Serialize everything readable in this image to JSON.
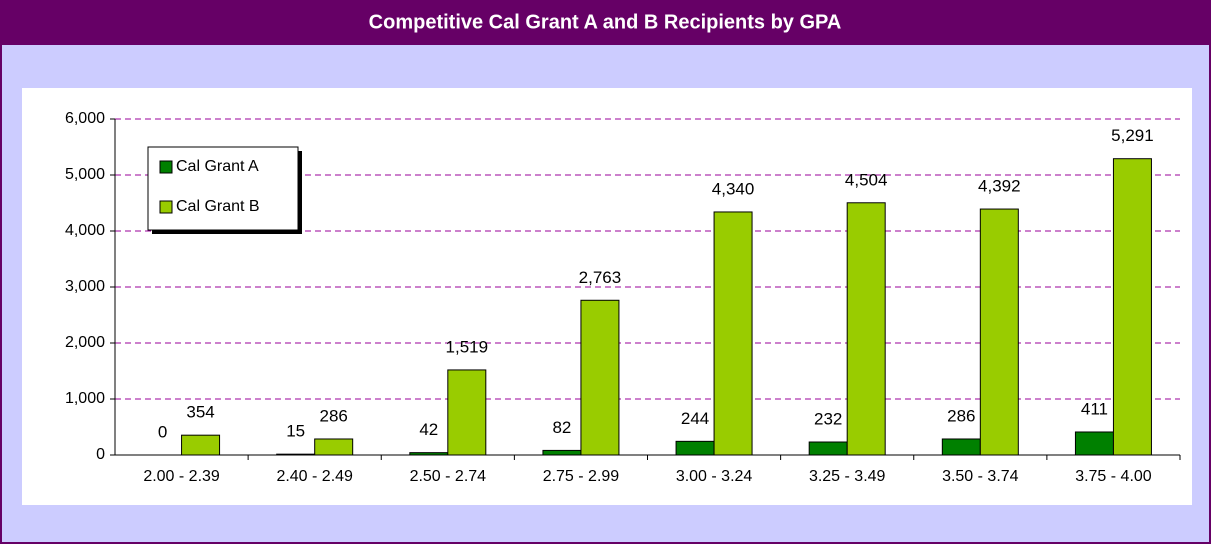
{
  "chart_data": {
    "type": "bar",
    "title": "Competitive Cal Grant A and B  Recipients by GPA",
    "categories": [
      "2.00 - 2.39",
      "2.40 - 2.49",
      "2.50 - 2.74",
      "2.75 - 2.99",
      "3.00 - 3.24",
      "3.25 - 3.49",
      "3.50 - 3.74",
      "3.75 - 4.00"
    ],
    "series": [
      {
        "name": "Cal Grant A",
        "color": "#008000",
        "values": [
          0,
          15,
          42,
          82,
          244,
          232,
          286,
          411
        ]
      },
      {
        "name": "Cal Grant B",
        "color": "#99cc00",
        "values": [
          354,
          286,
          1519,
          2763,
          4340,
          4504,
          4392,
          5291
        ],
        "value_labels": [
          "354",
          "286",
          "1,519",
          "2,763",
          "4,340",
          "4,504",
          "4,392",
          "5,291"
        ]
      }
    ],
    "ylim": [
      0,
      6000
    ],
    "yticks": [
      0,
      {
        "value": 1000,
        "label": "1,000"
      },
      {
        "value": 2000,
        "label": "2,000"
      },
      {
        "value": 3000,
        "label": "3,000"
      },
      {
        "value": 4000,
        "label": "4,000"
      },
      {
        "value": 5000,
        "label": "5,000"
      },
      {
        "value": 6000,
        "label": "6,000"
      }
    ],
    "grid": true,
    "legend": "upper-left"
  }
}
